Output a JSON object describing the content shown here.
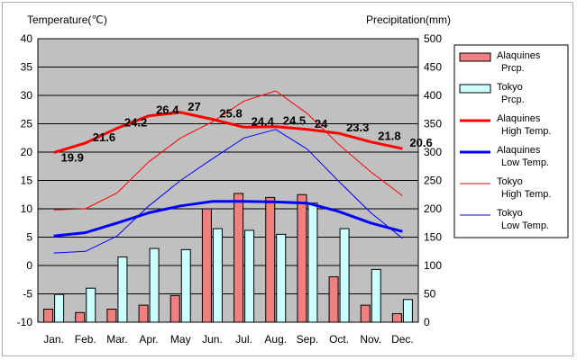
{
  "chart_data": {
    "type": "bar",
    "left_axis_label": "Temperature(℃)",
    "right_axis_label": "Precipitation(mm)",
    "categories": [
      "Jan.",
      "Feb.",
      "Mar.",
      "Apr.",
      "May",
      "Jun.",
      "Jul.",
      "Aug.",
      "Sep.",
      "Oct.",
      "Nov.",
      "Dec."
    ],
    "left_ticks": [
      "40",
      "35",
      "30",
      "25",
      "20",
      "15",
      "10",
      "5",
      "0",
      "-5",
      "-10"
    ],
    "right_ticks": [
      "500",
      "450",
      "400",
      "350",
      "300",
      "250",
      "200",
      "150",
      "100",
      "50",
      "0"
    ],
    "ylim_left": [
      -10,
      40
    ],
    "ylim_right": [
      0,
      500
    ],
    "grid": true,
    "legend_position": "right",
    "series": [
      {
        "name": "Alaquines Prcp.",
        "kind": "bar",
        "axis": "right",
        "color": "#f08080",
        "values": [
          23,
          17,
          23,
          30,
          47,
          200,
          227,
          220,
          225,
          80,
          30,
          15
        ]
      },
      {
        "name": "Tokyo Prcp.",
        "kind": "bar",
        "axis": "right",
        "color": "#ccffff",
        "values": [
          49,
          60,
          115,
          130,
          128,
          165,
          162,
          155,
          210,
          165,
          93,
          40
        ]
      },
      {
        "name": "Alaquines High Temp.",
        "kind": "line",
        "axis": "left",
        "color": "#ff0000",
        "width": 3,
        "values": [
          19.9,
          21.6,
          24.2,
          26.4,
          27,
          25.8,
          24.4,
          24.5,
          24,
          23.3,
          21.8,
          20.6
        ],
        "data_labels": [
          "19.9",
          "21.6",
          "24.2",
          "26.4",
          "27",
          "25.8",
          "24.4",
          "24.5",
          "24",
          "23.3",
          "21.8",
          "20.6"
        ]
      },
      {
        "name": "Alaquines Low Temp.",
        "kind": "line",
        "axis": "left",
        "color": "#0000ff",
        "width": 3,
        "values": [
          5.2,
          5.8,
          7.5,
          9.3,
          10.5,
          11.3,
          11.3,
          11.2,
          11,
          9.5,
          7.5,
          6
        ]
      },
      {
        "name": "Tokyo High Temp.",
        "kind": "line",
        "axis": "left",
        "color": "#ff0000",
        "width": 1,
        "values": [
          9.8,
          10,
          12.8,
          18.3,
          22.5,
          25.3,
          29,
          30.8,
          26.8,
          21.3,
          16.5,
          12.3
        ]
      },
      {
        "name": "Tokyo Low Temp.",
        "kind": "line",
        "axis": "left",
        "color": "#0000ff",
        "width": 1,
        "values": [
          2.2,
          2.5,
          5.2,
          10.5,
          15,
          18.8,
          22.5,
          24,
          20.5,
          14.8,
          9.3,
          4.8
        ]
      }
    ],
    "legend": [
      {
        "line1": "Alaquines",
        "line2": "Prcp.",
        "kind": "bar",
        "color": "#f08080"
      },
      {
        "line1": "Tokyo",
        "line2": "Prcp.",
        "kind": "bar",
        "color": "#ccffff"
      },
      {
        "line1": "Alaquines",
        "line2": "High Temp.",
        "kind": "line",
        "color": "#ff0000",
        "width": 3
      },
      {
        "line1": "Alaquines",
        "line2": "Low Temp.",
        "kind": "line",
        "color": "#0000ff",
        "width": 3
      },
      {
        "line1": "Tokyo",
        "line2": "High Temp.",
        "kind": "line",
        "color": "#ff0000",
        "width": 1
      },
      {
        "line1": "Tokyo",
        "line2": "Low Temp.",
        "kind": "line",
        "color": "#0000ff",
        "width": 1
      }
    ]
  }
}
